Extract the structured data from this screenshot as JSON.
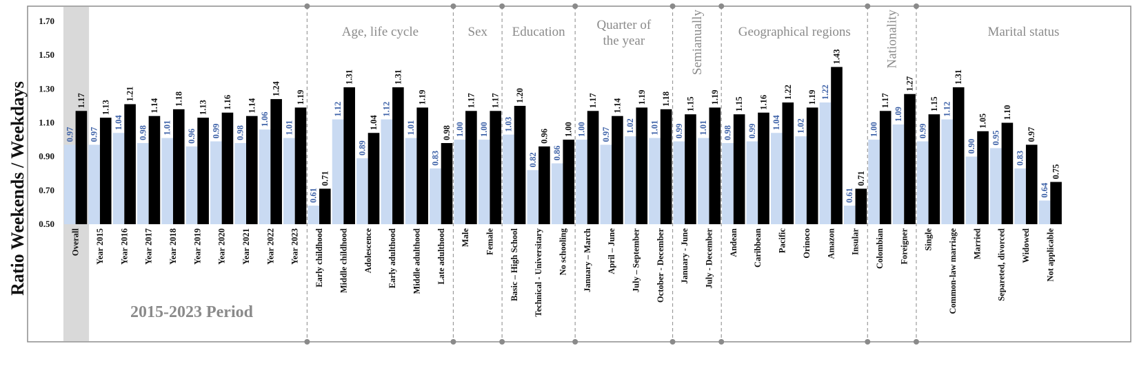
{
  "chart_data": {
    "type": "bar",
    "ylabel": "Ratio Weekends / Weekdays",
    "ylim": [
      0.5,
      1.7
    ],
    "yticks": [
      "0.50",
      "0.70",
      "0.90",
      "1.10",
      "1.30",
      "1.50",
      "1.70"
    ],
    "period_label": "2015-2023 Period",
    "colors": {
      "blue": "#c9daf2",
      "black": "#000000",
      "blue_label": "#3f63a8",
      "overall_band": "#d9d9d9",
      "group_text": "#8a8a8a"
    },
    "groups": [
      {
        "name": "",
        "categories": [
          "Overall",
          "Year 2015",
          "Year 2016",
          "Year 2017",
          "Year 2018",
          "Year 2019",
          "Year 2020",
          "Year 2021",
          "Year 2022",
          "Year 2023"
        ]
      },
      {
        "name": "Age, life cycle",
        "categories": [
          "Early childhood",
          "Middle childhood",
          "Adolescence",
          "Early adulthood",
          "Middle adulthood",
          "Late adulthood"
        ]
      },
      {
        "name": "Sex",
        "categories": [
          "Male",
          "Female"
        ]
      },
      {
        "name": "Education",
        "categories": [
          "Basic – High School",
          "Technical - Universitary",
          "No schooling"
        ]
      },
      {
        "name": "Quarter of the year",
        "categories": [
          "January – March",
          "April – June",
          "July – September",
          "October - December"
        ]
      },
      {
        "name": "Semianually",
        "categories": [
          "January - June",
          "July - December"
        ]
      },
      {
        "name": "Geographical regions",
        "categories": [
          "Andean",
          "Caribbean",
          "Pacific",
          "Orinoco",
          "Amazon",
          "Insular"
        ]
      },
      {
        "name": "Nationality",
        "categories": [
          "Colombian",
          "Foreigner"
        ]
      },
      {
        "name": "Marital status",
        "categories": [
          "Single",
          "Common-law marriage",
          "Married",
          "Separeted, divorced",
          "Widowed",
          "Not applicable"
        ]
      }
    ],
    "series": [
      {
        "color": "blue",
        "values": [
          0.97,
          0.97,
          1.04,
          0.98,
          1.01,
          0.96,
          0.99,
          0.98,
          1.06,
          1.01,
          0.61,
          1.12,
          0.89,
          1.12,
          1.01,
          0.83,
          1.0,
          1.0,
          1.03,
          0.82,
          0.86,
          1.0,
          0.97,
          1.02,
          1.01,
          0.99,
          1.01,
          0.98,
          0.99,
          1.04,
          1.02,
          1.22,
          0.61,
          1.0,
          1.09,
          0.99,
          1.12,
          0.9,
          0.95,
          0.83,
          0.64
        ],
        "labels": [
          "0.97",
          "0.97",
          "1.04",
          "0.98",
          "1.01",
          "0.96",
          "0.99",
          "0.98",
          "1.06",
          "1.01",
          "0.61",
          "1.12",
          "0.89",
          "1.12",
          "1.01",
          "0.83",
          "1.00",
          "1.00",
          "1.03",
          "0.82",
          "0.86",
          "1.00",
          "0.97",
          "1.02",
          "1.01",
          "0.99",
          "1.01",
          "0.98",
          "0.99",
          "1.04",
          "1.02",
          "1.22",
          "0.61",
          "1.00",
          "1.09",
          "0.99",
          "1.12",
          "0.90",
          "0.95",
          "0.83",
          "0.64"
        ]
      },
      {
        "color": "black",
        "values": [
          1.17,
          1.13,
          1.21,
          1.14,
          1.18,
          1.13,
          1.16,
          1.14,
          1.24,
          1.19,
          0.71,
          1.31,
          1.04,
          1.31,
          1.19,
          0.98,
          1.17,
          1.17,
          1.2,
          0.96,
          1.0,
          1.17,
          1.14,
          1.19,
          1.18,
          1.15,
          1.19,
          1.15,
          1.16,
          1.22,
          1.19,
          1.43,
          0.71,
          1.17,
          1.27,
          1.15,
          1.31,
          1.05,
          1.1,
          0.97,
          0.75
        ],
        "labels": [
          "1.17",
          "1.13",
          "1.21",
          "1.14",
          "1.18",
          "1.13",
          "1.16",
          "1.14",
          "1.24",
          "1.19",
          "0.71",
          "1.31",
          "1.04",
          "1.31",
          "1.19",
          "0.98",
          "1.17",
          "1.17",
          "1.20",
          "0.96",
          "1.00",
          "1.17",
          "1.14",
          "1.19",
          "1.18",
          "1.15",
          "1.19",
          "1.15",
          "1.16",
          "1.22",
          "1.19",
          "1.43",
          "0.71",
          "1.17",
          "1.27",
          "1.15",
          "1.31",
          "1.05",
          "1.10",
          "0.97",
          "0.75"
        ]
      }
    ]
  }
}
